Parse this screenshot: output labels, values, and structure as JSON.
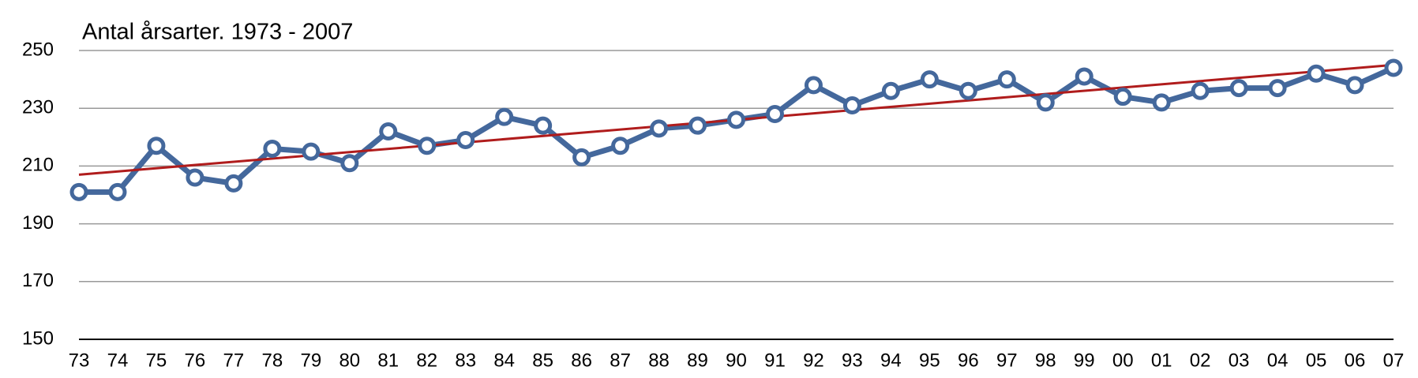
{
  "chart_data": {
    "type": "line",
    "title": "Antal årsarter. 1973 - 2007",
    "categories": [
      "73",
      "74",
      "75",
      "76",
      "77",
      "78",
      "79",
      "80",
      "81",
      "82",
      "83",
      "84",
      "85",
      "86",
      "87",
      "88",
      "89",
      "90",
      "91",
      "92",
      "93",
      "94",
      "95",
      "96",
      "97",
      "98",
      "99",
      "00",
      "01",
      "02",
      "03",
      "04",
      "05",
      "06",
      "07"
    ],
    "series": [
      {
        "name": "Antal årsarter",
        "color": "#44689c",
        "values": [
          201,
          201,
          217,
          206,
          204,
          216,
          215,
          211,
          222,
          217,
          219,
          227,
          224,
          213,
          217,
          223,
          224,
          226,
          228,
          238,
          231,
          236,
          240,
          236,
          240,
          232,
          241,
          234,
          232,
          236,
          237,
          237,
          242,
          238,
          244
        ]
      }
    ],
    "trendline": {
      "color": "#b01c1c",
      "values": [
        207,
        245
      ]
    },
    "ylim": [
      150,
      250
    ],
    "yticks": [
      150,
      170,
      190,
      210,
      230,
      250
    ],
    "grid": true
  }
}
